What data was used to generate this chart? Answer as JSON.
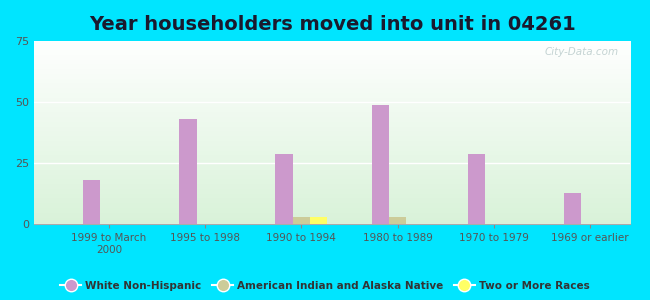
{
  "title": "Year householders moved into unit in 04261",
  "categories": [
    "1999 to March\n2000",
    "1995 to 1998",
    "1990 to 1994",
    "1980 to 1989",
    "1970 to 1979",
    "1969 or earlier"
  ],
  "white_non_hispanic": [
    18,
    43,
    29,
    49,
    29,
    13
  ],
  "american_indian": [
    0,
    0,
    3,
    3,
    0,
    0
  ],
  "two_or_more": [
    0,
    0,
    3,
    0,
    0,
    0
  ],
  "bar_width": 0.18,
  "ylim": [
    0,
    75
  ],
  "yticks": [
    0,
    25,
    50,
    75
  ],
  "color_white": "#cc99cc",
  "color_indian": "#cccc99",
  "color_two": "#ffff66",
  "bg_outer": "#00e5ff",
  "title_fontsize": 14,
  "watermark": "City-Data.com"
}
